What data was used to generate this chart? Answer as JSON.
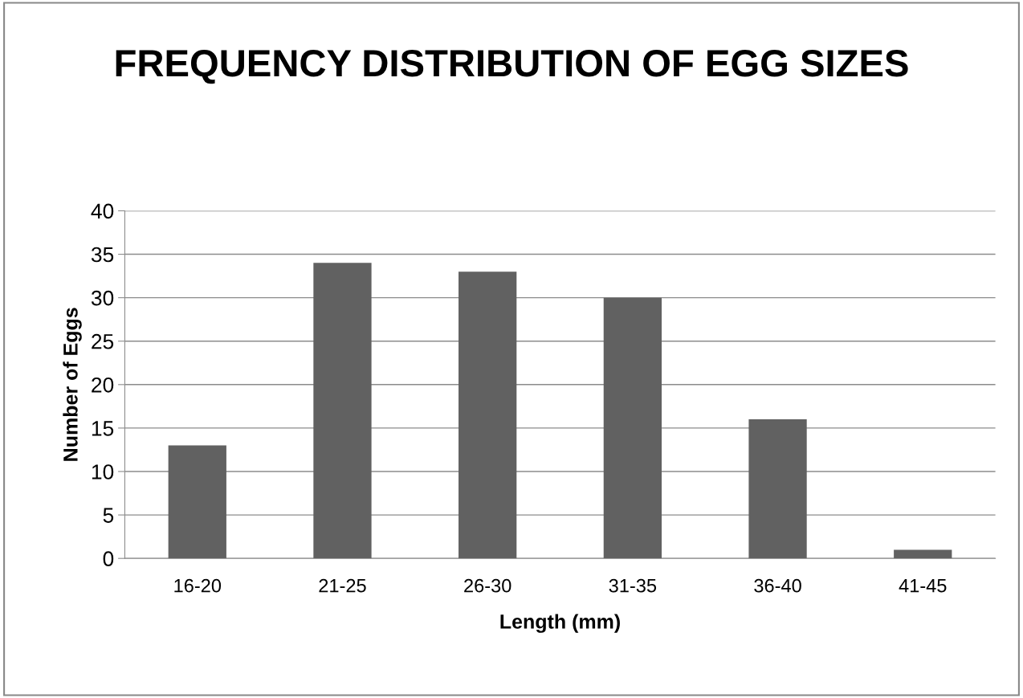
{
  "chart_data": {
    "type": "bar",
    "title": "FREQUENCY DISTRIBUTION OF EGG SIZES",
    "xlabel": "Length (mm)",
    "ylabel": "Number of Eggs",
    "categories": [
      "16-20",
      "21-25",
      "26-30",
      "31-35",
      "36-40",
      "41-45"
    ],
    "values": [
      13,
      34,
      33,
      30,
      16,
      1
    ],
    "color": "#616161",
    "ylim": [
      0,
      40
    ],
    "yticks": [
      0,
      5,
      10,
      15,
      20,
      25,
      30,
      35,
      40
    ],
    "grid": "y"
  }
}
